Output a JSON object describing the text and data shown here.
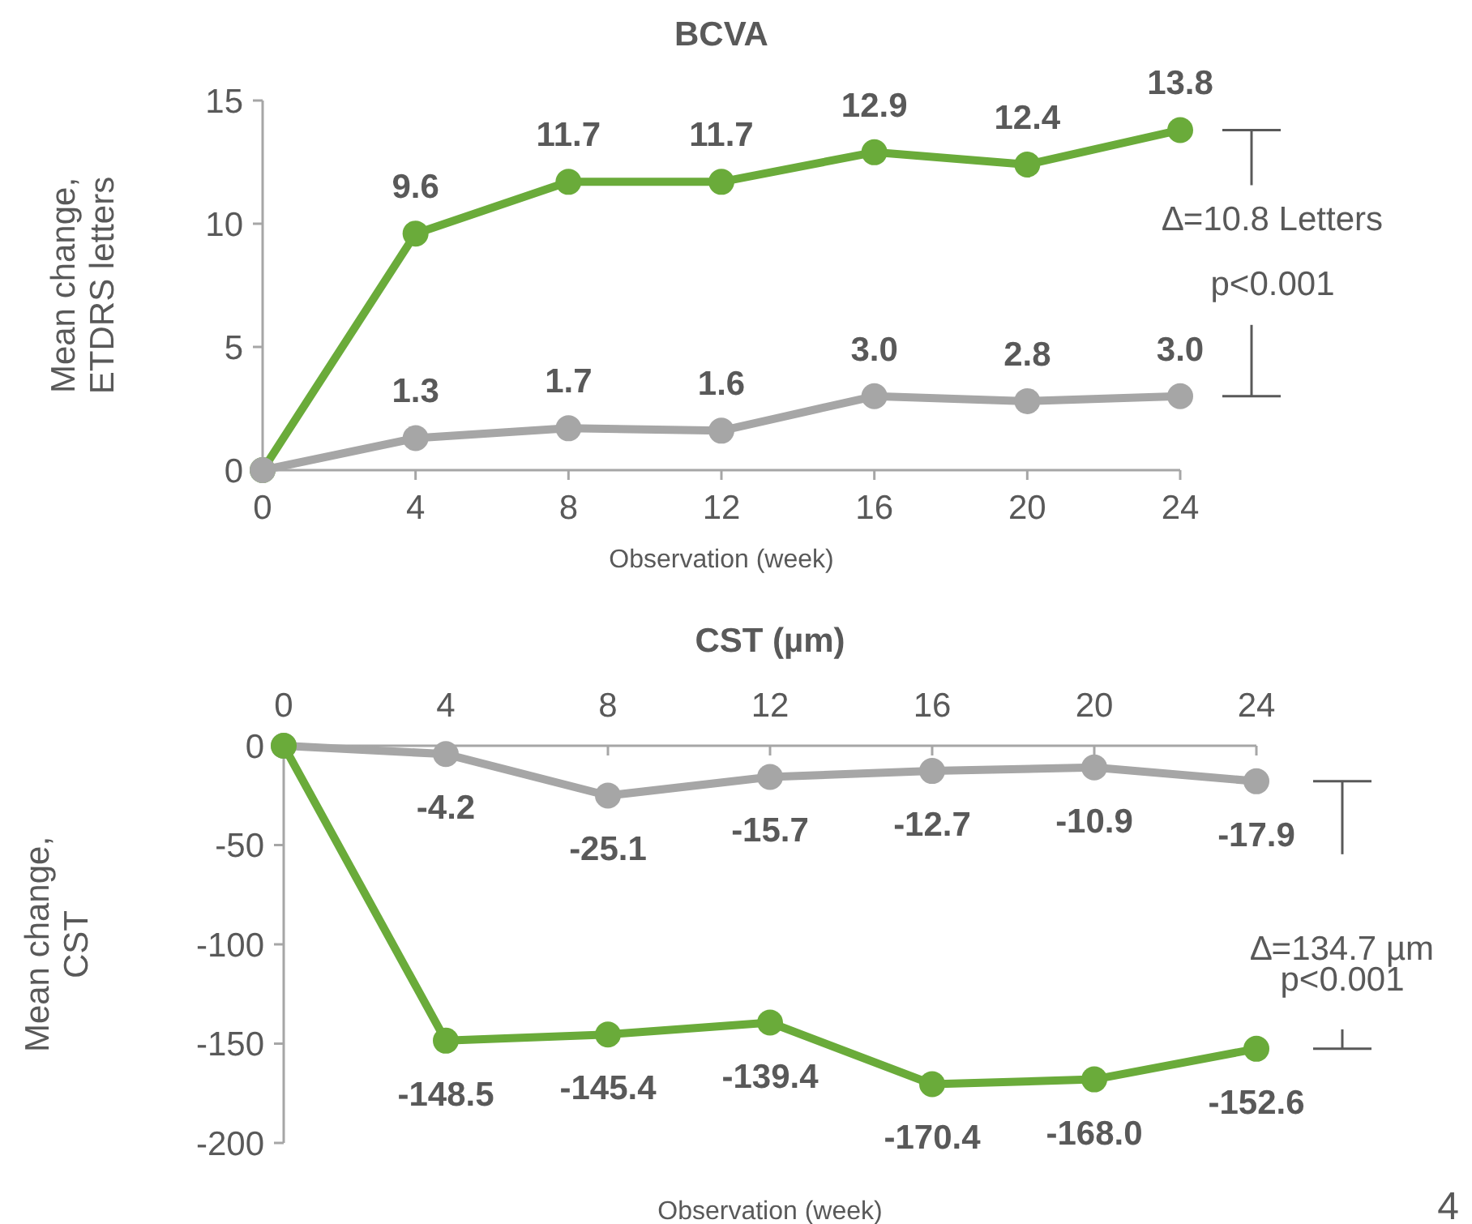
{
  "chart_data": [
    {
      "type": "line",
      "title": "BCVA",
      "xlabel": "Observation (week)",
      "ylabel": "Mean change,\nETDRS letters",
      "x": [
        0,
        4,
        8,
        12,
        16,
        20,
        24
      ],
      "xlim": [
        0,
        24
      ],
      "xticks": [
        0,
        4,
        8,
        12,
        16,
        20,
        24
      ],
      "ylim": [
        0,
        15
      ],
      "yticks": [
        0,
        5,
        10,
        15
      ],
      "marker": "circle",
      "grid": false,
      "series": [
        {
          "color": "#6aab3a",
          "values": [
            0,
            9.6,
            11.7,
            11.7,
            12.9,
            12.4,
            13.8
          ],
          "value_labels": [
            null,
            "9.6",
            "11.7",
            "11.7",
            "12.9",
            "12.4",
            "13.8"
          ]
        },
        {
          "color": "#a6a6a6",
          "values": [
            0,
            1.3,
            1.7,
            1.6,
            3.0,
            2.8,
            3.0
          ],
          "value_labels": [
            null,
            "1.3",
            "1.7",
            "1.6",
            "3.0",
            "2.8",
            "3.0"
          ]
        }
      ],
      "annotations": [
        "∆=10.8 Letters",
        "p<0.001"
      ]
    },
    {
      "type": "line",
      "title": "CST (µm)",
      "xlabel": "Observation (week)",
      "ylabel": "Mean change,\nCST",
      "x": [
        0,
        4,
        8,
        12,
        16,
        20,
        24
      ],
      "xlim": [
        0,
        24
      ],
      "xticks": [
        0,
        4,
        8,
        12,
        16,
        20,
        24
      ],
      "ylim": [
        -200,
        0
      ],
      "yticks": [
        -200,
        -150,
        -100,
        -50,
        0
      ],
      "marker": "circle",
      "grid": false,
      "series": [
        {
          "color": "#a6a6a6",
          "values": [
            0,
            -4.2,
            -25.1,
            -15.7,
            -12.7,
            -10.9,
            -17.9
          ],
          "value_labels": [
            null,
            "-4.2",
            "-25.1",
            "-15.7",
            "-12.7",
            "-10.9",
            "-17.9"
          ]
        },
        {
          "color": "#6aab3a",
          "values": [
            0,
            -148.5,
            -145.4,
            -139.4,
            -170.4,
            -168.0,
            -152.6
          ],
          "value_labels": [
            null,
            "-148.5",
            "-145.4",
            "-139.4",
            "-170.4",
            "-168.0",
            "-152.6"
          ]
        }
      ],
      "annotations": [
        "∆=134.7 µm",
        "p<0.001",
        "4"
      ]
    }
  ]
}
